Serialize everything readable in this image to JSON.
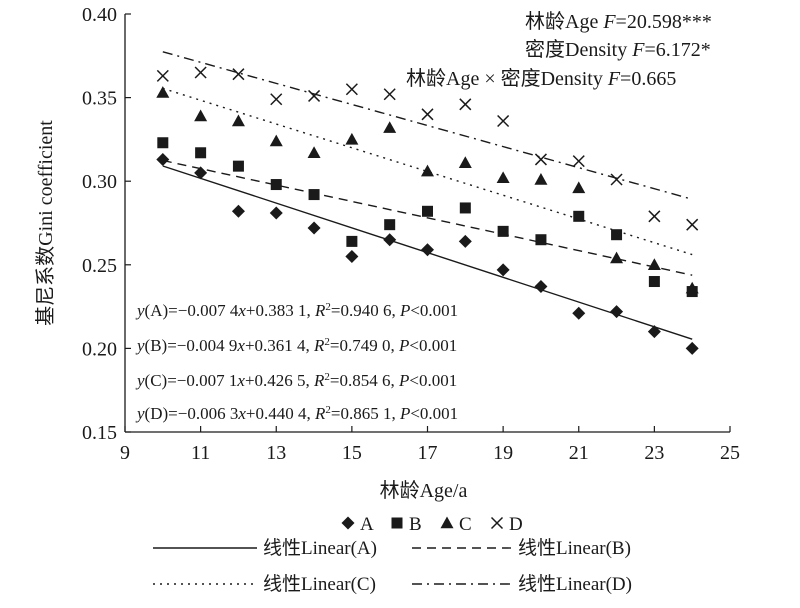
{
  "chart_data": {
    "type": "scatter",
    "xlabel": "林龄Age/a",
    "ylabel": "基尼系数Gini coefficient",
    "xlim": [
      9,
      25
    ],
    "ylim": [
      0.15,
      0.4
    ],
    "xticks": [
      "9",
      "11",
      "13",
      "15",
      "17",
      "19",
      "21",
      "23",
      "25"
    ],
    "yticks": [
      "0.15",
      "0.20",
      "0.25",
      "0.30",
      "0.35",
      "0.40"
    ],
    "grid": false,
    "legend_position": "bottom",
    "x": [
      10,
      11,
      12,
      13,
      14,
      15,
      16,
      17,
      18,
      19,
      20,
      21,
      22,
      23,
      24
    ],
    "series": [
      {
        "name": "A",
        "marker": "diamond",
        "values": [
          0.313,
          0.305,
          0.282,
          0.281,
          0.272,
          0.255,
          0.265,
          0.259,
          0.264,
          0.247,
          0.237,
          0.221,
          0.222,
          0.21,
          0.2
        ]
      },
      {
        "name": "B",
        "marker": "square",
        "values": [
          0.323,
          0.317,
          0.309,
          0.298,
          0.292,
          0.264,
          0.274,
          0.282,
          0.284,
          0.27,
          0.265,
          0.279,
          0.268,
          0.24,
          0.234
        ]
      },
      {
        "name": "C",
        "marker": "triangle",
        "values": [
          0.353,
          0.339,
          0.336,
          0.324,
          0.317,
          0.325,
          0.332,
          0.306,
          0.311,
          0.302,
          0.301,
          0.296,
          0.254,
          0.25,
          0.236
        ]
      },
      {
        "name": "D",
        "marker": "cross",
        "values": [
          0.363,
          0.365,
          0.364,
          0.349,
          0.351,
          0.355,
          0.352,
          0.34,
          0.346,
          0.336,
          0.313,
          0.312,
          0.301,
          0.279,
          0.274
        ]
      }
    ],
    "trendlines": [
      {
        "name": "线性Linear(A)",
        "series": "A",
        "style": "solid",
        "slope": -0.0074,
        "intercept": 0.3831
      },
      {
        "name": "线性Linear(B)",
        "series": "B",
        "style": "dashed",
        "slope": -0.0049,
        "intercept": 0.3614
      },
      {
        "name": "线性Linear(C)",
        "series": "C",
        "style": "dotted",
        "slope": -0.0071,
        "intercept": 0.4265
      },
      {
        "name": "线性Linear(D)",
        "series": "D",
        "style": "dashdot",
        "slope": -0.0063,
        "intercept": 0.4404
      }
    ],
    "stats": [
      {
        "label": "林龄Age ",
        "var": "F",
        "value": "=20.598***"
      },
      {
        "label": "密度Density ",
        "var": "F",
        "value": "=6.172*"
      },
      {
        "label": "林龄Age × 密度Density ",
        "var": "F",
        "value": "=0.665"
      }
    ],
    "equations": [
      {
        "series": "A",
        "coef": "=−0.007 4",
        "const": "+0.383 1, ",
        "r2": "=0.940 6, ",
        "p": "<0.001"
      },
      {
        "series": "B",
        "coef": "=−0.004 9",
        "const": "+0.361 4, ",
        "r2": "=0.749 0, ",
        "p": "<0.001"
      },
      {
        "series": "C",
        "coef": "=−0.007 1",
        "const": "+0.426 5, ",
        "r2": "=0.854 6, ",
        "p": "<0.001"
      },
      {
        "series": "D",
        "coef": "=−0.006 3",
        "const": "+0.440 4, ",
        "r2": "=0.865 1, ",
        "p": "<0.001"
      }
    ],
    "equation_symbols": {
      "y": "y",
      "x": "x",
      "r": "R",
      "sup": "2",
      "p": "P"
    },
    "colors": {
      "ink": "#1a1a1a"
    }
  }
}
